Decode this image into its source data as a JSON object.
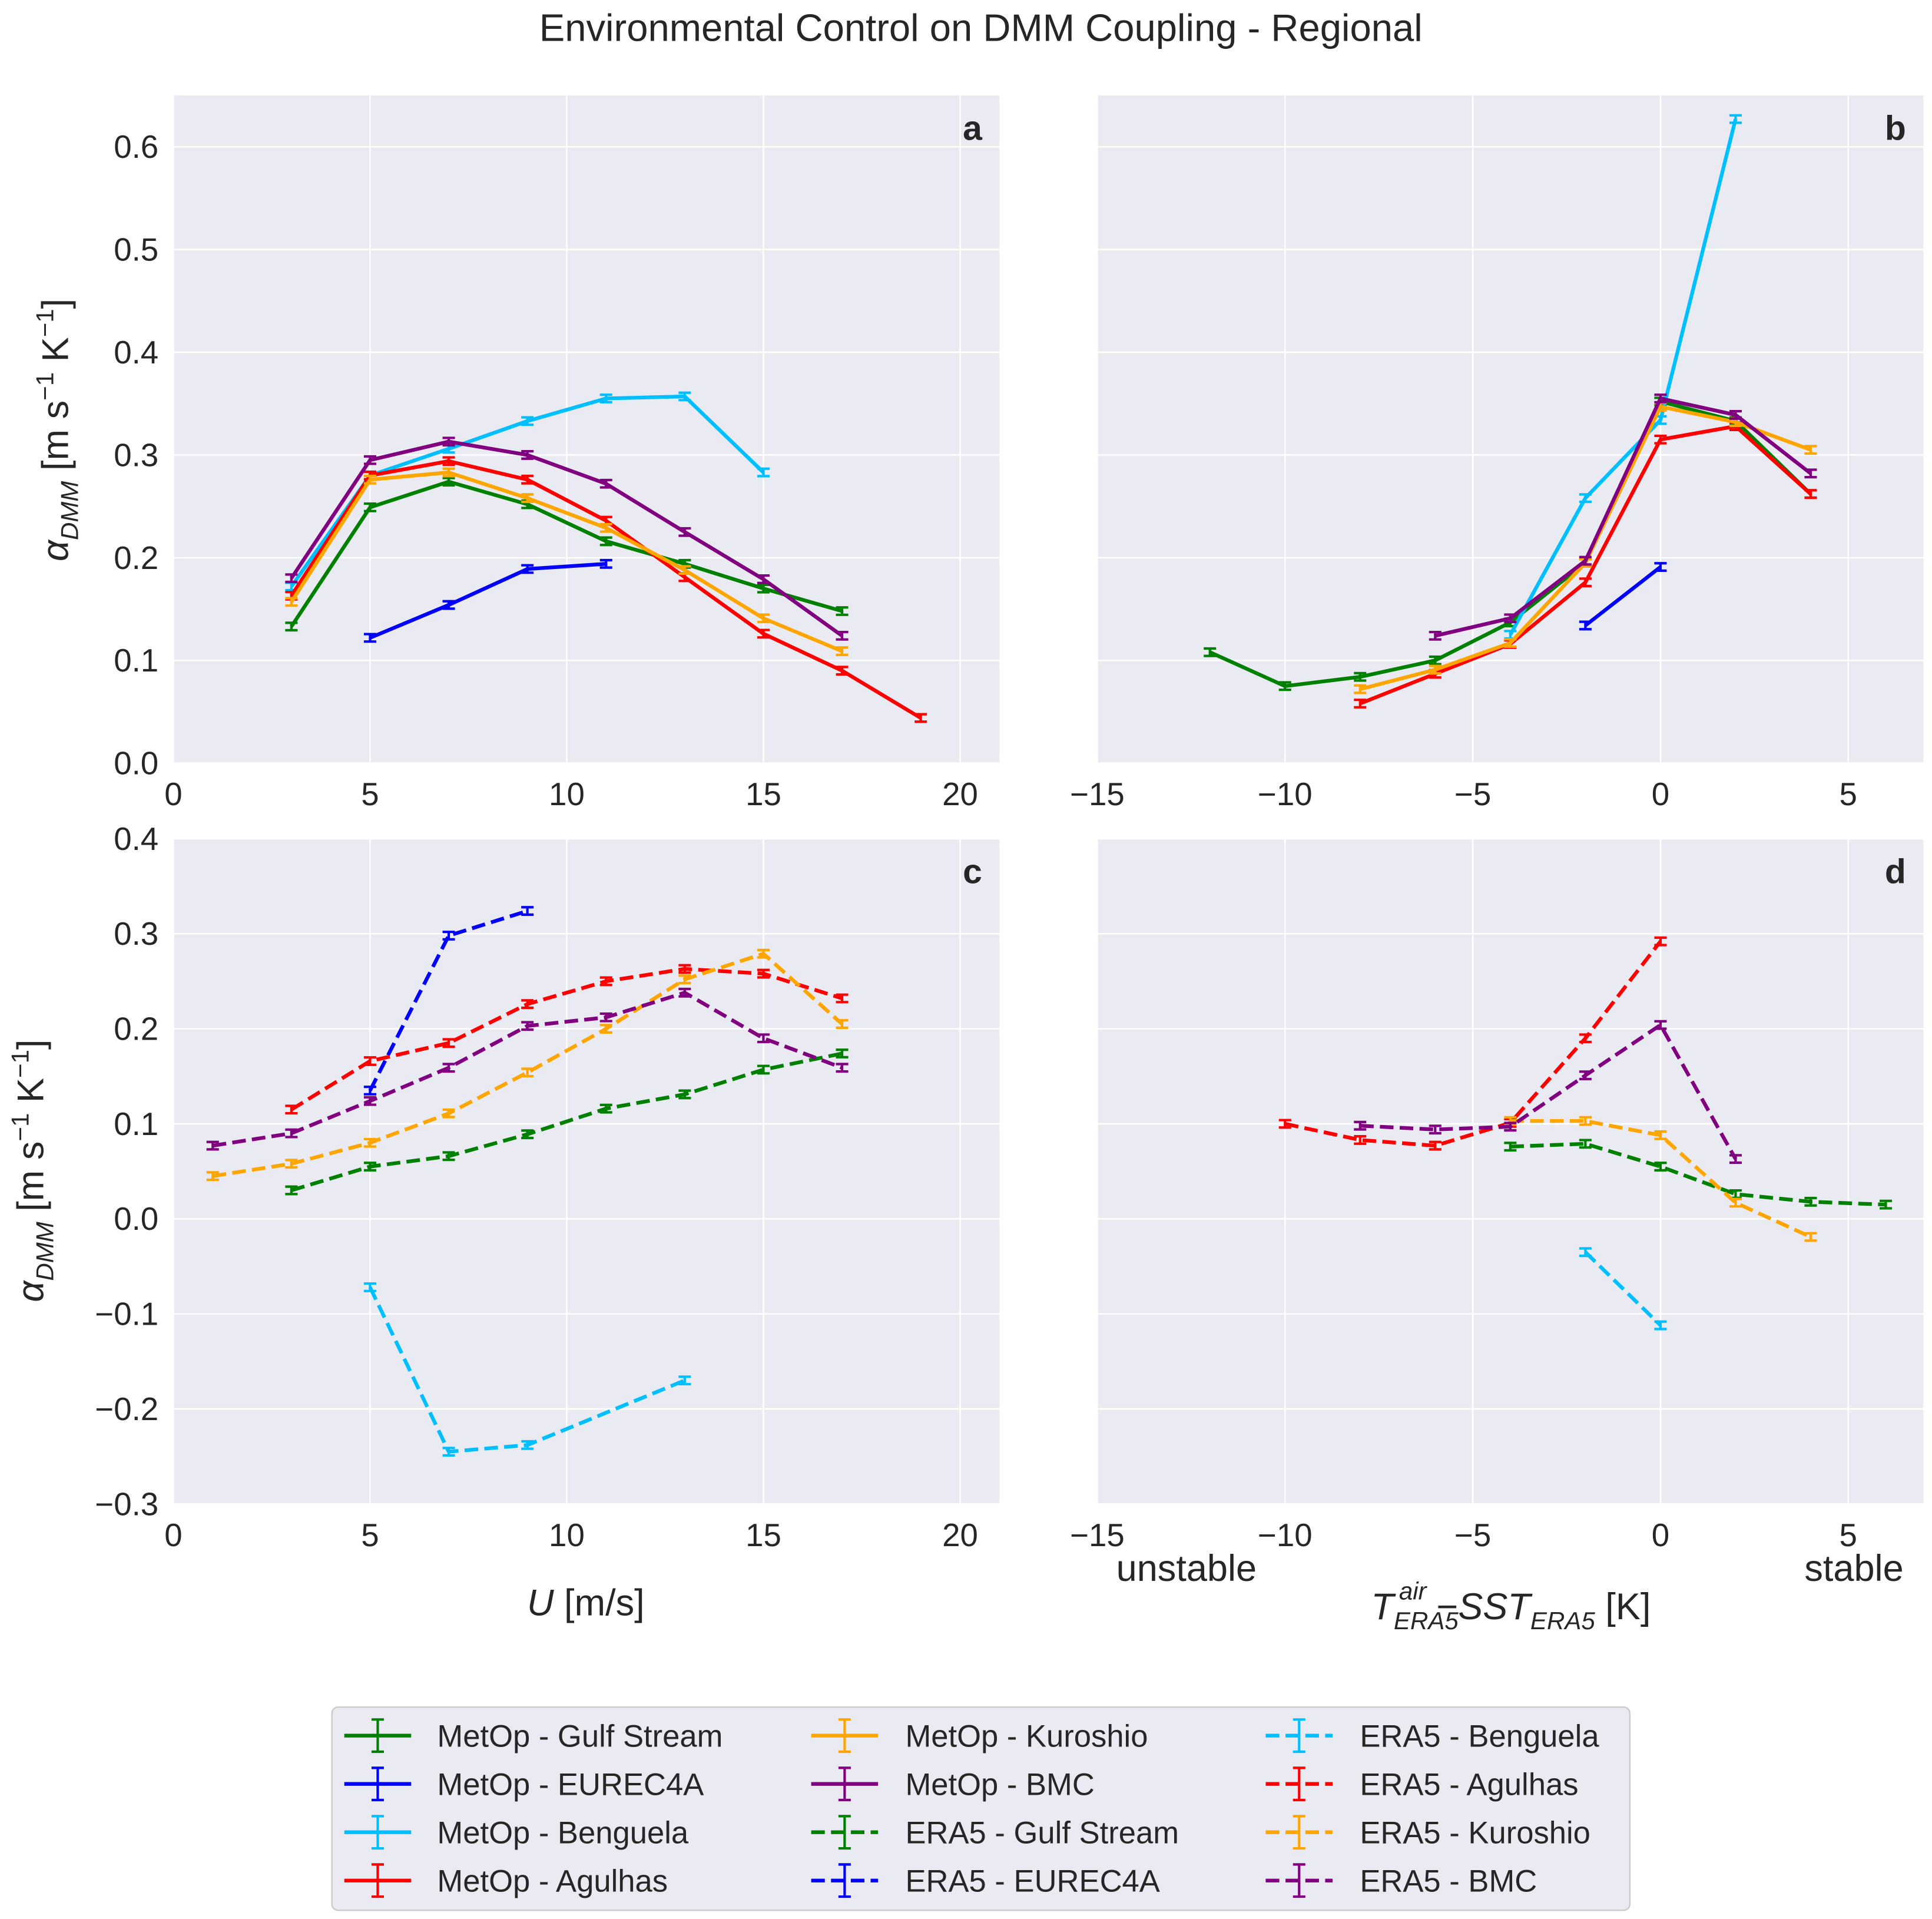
{
  "title": "Environmental Control on DMM Coupling - Regional",
  "colors": {
    "gulf_stream": "#008000",
    "eurec4a": "#0000ff",
    "benguela": "#00bfff",
    "agulhas": "#ff0000",
    "kuroshio": "#ffa500",
    "bmc": "#800080",
    "panel_bg": "#eaeaf2",
    "grid": "#ffffff"
  },
  "annotations": {
    "unstable": "unstable",
    "stable": "stable"
  },
  "chart_data": [
    {
      "type": "line",
      "panel": "a",
      "label": "a",
      "xlim": [
        0,
        21
      ],
      "ylim": [
        0,
        0.65
      ],
      "xticks": [
        0,
        5,
        10,
        15,
        20
      ],
      "yticks": [
        0,
        0.1,
        0.2,
        0.3,
        0.4,
        0.5,
        0.6
      ],
      "ytick_labels": [
        "0.0",
        "0.1",
        "0.2",
        "0.3",
        "0.4",
        "0.5",
        "0.6"
      ],
      "xtick_labels": [
        "0",
        "5",
        "10",
        "15",
        "20"
      ],
      "ylabel": "α_DMM [m s⁻¹ K⁻¹]",
      "xlabel": "",
      "dashed": false,
      "series": [
        {
          "name": "MetOp - Gulf Stream",
          "color": "gulf_stream",
          "x": [
            3,
            5,
            7,
            9,
            11,
            13,
            15,
            17
          ],
          "y": [
            0.133,
            0.249,
            0.274,
            0.252,
            0.216,
            0.194,
            0.17,
            0.148
          ]
        },
        {
          "name": "MetOp - EUREC4A",
          "color": "eurec4a",
          "x": [
            5,
            7,
            9,
            11
          ],
          "y": [
            0.122,
            0.154,
            0.189,
            0.194
          ]
        },
        {
          "name": "MetOp - Benguela",
          "color": "benguela",
          "x": [
            3,
            5,
            7,
            9,
            11,
            13,
            15
          ],
          "y": [
            0.172,
            0.28,
            0.306,
            0.333,
            0.355,
            0.357,
            0.283
          ]
        },
        {
          "name": "MetOp - Agulhas",
          "color": "agulhas",
          "x": [
            3,
            5,
            7,
            9,
            11,
            13,
            15,
            17,
            19
          ],
          "y": [
            0.163,
            0.28,
            0.294,
            0.276,
            0.236,
            0.181,
            0.126,
            0.09,
            0.044
          ]
        },
        {
          "name": "MetOp - Kuroshio",
          "color": "kuroshio",
          "x": [
            3,
            5,
            7,
            9,
            11,
            13,
            15,
            17
          ],
          "y": [
            0.157,
            0.276,
            0.283,
            0.258,
            0.229,
            0.188,
            0.141,
            0.109
          ]
        },
        {
          "name": "MetOp - BMC",
          "color": "bmc",
          "x": [
            3,
            5,
            7,
            9,
            11,
            13,
            15,
            17
          ],
          "y": [
            0.18,
            0.295,
            0.313,
            0.3,
            0.272,
            0.225,
            0.179,
            0.124
          ]
        }
      ]
    },
    {
      "type": "line",
      "panel": "b",
      "label": "b",
      "xlim": [
        -15,
        7
      ],
      "ylim": [
        0,
        0.65
      ],
      "xticks": [
        -15,
        -10,
        -5,
        0,
        5
      ],
      "yticks": [
        0,
        0.1,
        0.2,
        0.3,
        0.4,
        0.5,
        0.6
      ],
      "xtick_labels": [
        "−15",
        "−10",
        "−5",
        "0",
        "5"
      ],
      "ytick_labels": [],
      "ylabel": "",
      "xlabel": "",
      "dashed": false,
      "series": [
        {
          "name": "MetOp - Gulf Stream",
          "color": "gulf_stream",
          "x": [
            -12,
            -10,
            -8,
            -6,
            -4,
            -2,
            0,
            2,
            4
          ],
          "y": [
            0.108,
            0.075,
            0.084,
            0.1,
            0.137,
            0.195,
            0.352,
            0.333,
            0.262
          ]
        },
        {
          "name": "MetOp - EUREC4A",
          "color": "eurec4a",
          "x": [
            -2,
            0
          ],
          "y": [
            0.134,
            0.191
          ]
        },
        {
          "name": "MetOp - Benguela",
          "color": "benguela",
          "x": [
            -4,
            -2,
            0,
            2
          ],
          "y": [
            0.125,
            0.258,
            0.334,
            0.627
          ]
        },
        {
          "name": "MetOp - Agulhas",
          "color": "agulhas",
          "x": [
            -8,
            -6,
            -4,
            -2,
            0,
            2,
            4
          ],
          "y": [
            0.058,
            0.087,
            0.116,
            0.176,
            0.315,
            0.328,
            0.262
          ]
        },
        {
          "name": "MetOp - Kuroshio",
          "color": "kuroshio",
          "x": [
            -8,
            -6,
            -4,
            -2,
            0,
            2,
            4
          ],
          "y": [
            0.072,
            0.091,
            0.117,
            0.195,
            0.347,
            0.332,
            0.305
          ]
        },
        {
          "name": "MetOp - BMC",
          "color": "bmc",
          "x": [
            -6,
            -4,
            -2,
            0,
            2,
            4
          ],
          "y": [
            0.124,
            0.141,
            0.197,
            0.355,
            0.339,
            0.282
          ]
        }
      ]
    },
    {
      "type": "line",
      "panel": "c",
      "label": "c",
      "xlim": [
        0,
        21
      ],
      "ylim": [
        -0.3,
        0.4
      ],
      "xticks": [
        0,
        5,
        10,
        15,
        20
      ],
      "yticks": [
        -0.3,
        -0.2,
        -0.1,
        0,
        0.1,
        0.2,
        0.3,
        0.4
      ],
      "xtick_labels": [
        "0",
        "5",
        "10",
        "15",
        "20"
      ],
      "ytick_labels": [
        "−0.3",
        "−0.2",
        "−0.1",
        "0.0",
        "0.1",
        "0.2",
        "0.3",
        "0.4"
      ],
      "ylabel": "α_DMM [m s⁻¹ K⁻¹]",
      "xlabel": "U [m/s]",
      "dashed": true,
      "series": [
        {
          "name": "ERA5 - Gulf Stream",
          "color": "gulf_stream",
          "x": [
            3,
            5,
            7,
            9,
            11,
            13,
            15,
            17
          ],
          "y": [
            0.03,
            0.055,
            0.066,
            0.089,
            0.116,
            0.131,
            0.157,
            0.174
          ]
        },
        {
          "name": "ERA5 - EUREC4A",
          "color": "eurec4a",
          "x": [
            5,
            7,
            9
          ],
          "y": [
            0.135,
            0.298,
            0.324
          ]
        },
        {
          "name": "ERA5 - Benguela",
          "color": "benguela",
          "x": [
            5,
            7,
            9,
            13
          ],
          "y": [
            -0.072,
            -0.245,
            -0.238,
            -0.17
          ]
        },
        {
          "name": "ERA5 - Agulhas",
          "color": "agulhas",
          "x": [
            3,
            5,
            7,
            9,
            11,
            13,
            15,
            17
          ],
          "y": [
            0.115,
            0.166,
            0.185,
            0.226,
            0.25,
            0.263,
            0.258,
            0.232
          ]
        },
        {
          "name": "ERA5 - Kuroshio",
          "color": "kuroshio",
          "x": [
            1,
            3,
            5,
            7,
            9,
            11,
            13,
            15,
            17
          ],
          "y": [
            0.045,
            0.058,
            0.08,
            0.111,
            0.154,
            0.2,
            0.252,
            0.279,
            0.205
          ]
        },
        {
          "name": "ERA5 - BMC",
          "color": "bmc",
          "x": [
            1,
            3,
            5,
            7,
            9,
            11,
            13,
            15,
            17
          ],
          "y": [
            0.077,
            0.09,
            0.124,
            0.159,
            0.203,
            0.212,
            0.238,
            0.19,
            0.159
          ]
        }
      ]
    },
    {
      "type": "line",
      "panel": "d",
      "label": "d",
      "xlim": [
        -15,
        7
      ],
      "ylim": [
        -0.3,
        0.4
      ],
      "xticks": [
        -15,
        -10,
        -5,
        0,
        5
      ],
      "yticks": [
        -0.3,
        -0.2,
        -0.1,
        0,
        0.1,
        0.2,
        0.3,
        0.4
      ],
      "xtick_labels": [
        "−15",
        "−10",
        "−5",
        "0",
        "5"
      ],
      "ytick_labels": [],
      "ylabel": "",
      "xlabel": "T_ERA5^air − SST_ERA5 [K]",
      "dashed": true,
      "series": [
        {
          "name": "ERA5 - Gulf Stream",
          "color": "gulf_stream",
          "x": [
            -4,
            -2,
            0,
            2,
            4,
            6
          ],
          "y": [
            0.076,
            0.079,
            0.055,
            0.026,
            0.018,
            0.015
          ]
        },
        {
          "name": "ERA5 - Benguela",
          "color": "benguela",
          "x": [
            -2,
            0
          ],
          "y": [
            -0.035,
            -0.112
          ]
        },
        {
          "name": "ERA5 - Agulhas",
          "color": "agulhas",
          "x": [
            -10,
            -8,
            -6,
            -4,
            -2,
            0
          ],
          "y": [
            0.1,
            0.083,
            0.077,
            0.101,
            0.19,
            0.292
          ]
        },
        {
          "name": "ERA5 - Kuroshio",
          "color": "kuroshio",
          "x": [
            -4,
            -2,
            0,
            2,
            4
          ],
          "y": [
            0.103,
            0.103,
            0.088,
            0.017,
            -0.019
          ]
        },
        {
          "name": "ERA5 - BMC",
          "color": "bmc",
          "x": [
            -8,
            -6,
            -4,
            -2,
            0,
            2
          ],
          "y": [
            0.098,
            0.094,
            0.097,
            0.151,
            0.204,
            0.063
          ]
        }
      ]
    }
  ],
  "legend": {
    "placement": "bottom-center",
    "entries": [
      {
        "label": "MetOp - Gulf Stream",
        "color": "gulf_stream",
        "dashed": false
      },
      {
        "label": "MetOp - EUREC4A",
        "color": "eurec4a",
        "dashed": false
      },
      {
        "label": "MetOp - Benguela",
        "color": "benguela",
        "dashed": false
      },
      {
        "label": "MetOp - Agulhas",
        "color": "agulhas",
        "dashed": false
      },
      {
        "label": "MetOp - Kuroshio",
        "color": "kuroshio",
        "dashed": false
      },
      {
        "label": "MetOp - BMC",
        "color": "bmc",
        "dashed": false
      },
      {
        "label": "ERA5 - Gulf Stream",
        "color": "gulf_stream",
        "dashed": true
      },
      {
        "label": "ERA5 - EUREC4A",
        "color": "eurec4a",
        "dashed": true
      },
      {
        "label": "ERA5 - Benguela",
        "color": "benguela",
        "dashed": true
      },
      {
        "label": "ERA5 - Agulhas",
        "color": "agulhas",
        "dashed": true
      },
      {
        "label": "ERA5 - Kuroshio",
        "color": "kuroshio",
        "dashed": true
      },
      {
        "label": "ERA5 - BMC",
        "color": "bmc",
        "dashed": true
      }
    ]
  }
}
